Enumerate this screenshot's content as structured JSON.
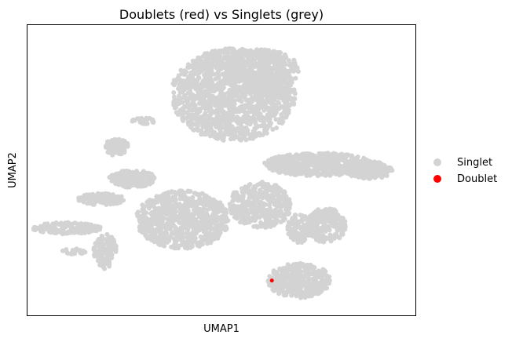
{
  "chart_data": {
    "type": "scatter",
    "title": "Doublets (red) vs Singlets (grey)",
    "xlabel": "UMAP1",
    "ylabel": "UMAP2",
    "xlim": [
      0,
      100
    ],
    "ylim": [
      0,
      100
    ],
    "grid": false,
    "axis_ticks": false,
    "legend": {
      "placement": "right",
      "entries": [
        {
          "label": "Singlet",
          "color": "#d3d3d3"
        },
        {
          "label": "Doublet",
          "color": "#ff0000"
        }
      ]
    },
    "series": [
      {
        "name": "Singlet",
        "color": "#d3d3d3",
        "clusters": [
          {
            "cx": 53,
            "cy": 76,
            "rx": 16,
            "ry": 16,
            "n": 1400
          },
          {
            "cx": 60,
            "cy": 84,
            "rx": 10,
            "ry": 8,
            "n": 400
          },
          {
            "cx": 75,
            "cy": 52,
            "rx": 14,
            "ry": 4,
            "n": 600
          },
          {
            "cx": 88,
            "cy": 50,
            "rx": 6,
            "ry": 3,
            "n": 250
          },
          {
            "cx": 40,
            "cy": 33,
            "rx": 12,
            "ry": 10,
            "n": 800
          },
          {
            "cx": 60,
            "cy": 38,
            "rx": 8,
            "ry": 8,
            "n": 400
          },
          {
            "cx": 70,
            "cy": 30,
            "rx": 3,
            "ry": 5,
            "n": 120
          },
          {
            "cx": 77,
            "cy": 31,
            "rx": 5,
            "ry": 6,
            "n": 200
          },
          {
            "cx": 70,
            "cy": 12,
            "rx": 8,
            "ry": 6,
            "n": 400
          },
          {
            "cx": 27,
            "cy": 47,
            "rx": 6,
            "ry": 3,
            "n": 200
          },
          {
            "cx": 23,
            "cy": 58,
            "rx": 3,
            "ry": 3,
            "n": 90
          },
          {
            "cx": 19,
            "cy": 40,
            "rx": 6,
            "ry": 2,
            "n": 120
          },
          {
            "cx": 10,
            "cy": 30,
            "rx": 9,
            "ry": 2,
            "n": 160
          },
          {
            "cx": 20,
            "cy": 22,
            "rx": 3,
            "ry": 6,
            "n": 140
          },
          {
            "cx": 30,
            "cy": 67,
            "rx": 3,
            "ry": 1,
            "n": 35
          },
          {
            "cx": 12,
            "cy": 22,
            "rx": 3,
            "ry": 1,
            "n": 25
          }
        ]
      },
      {
        "name": "Doublet",
        "color": "#ff0000",
        "points": [
          [
            63,
            12
          ]
        ]
      }
    ]
  }
}
